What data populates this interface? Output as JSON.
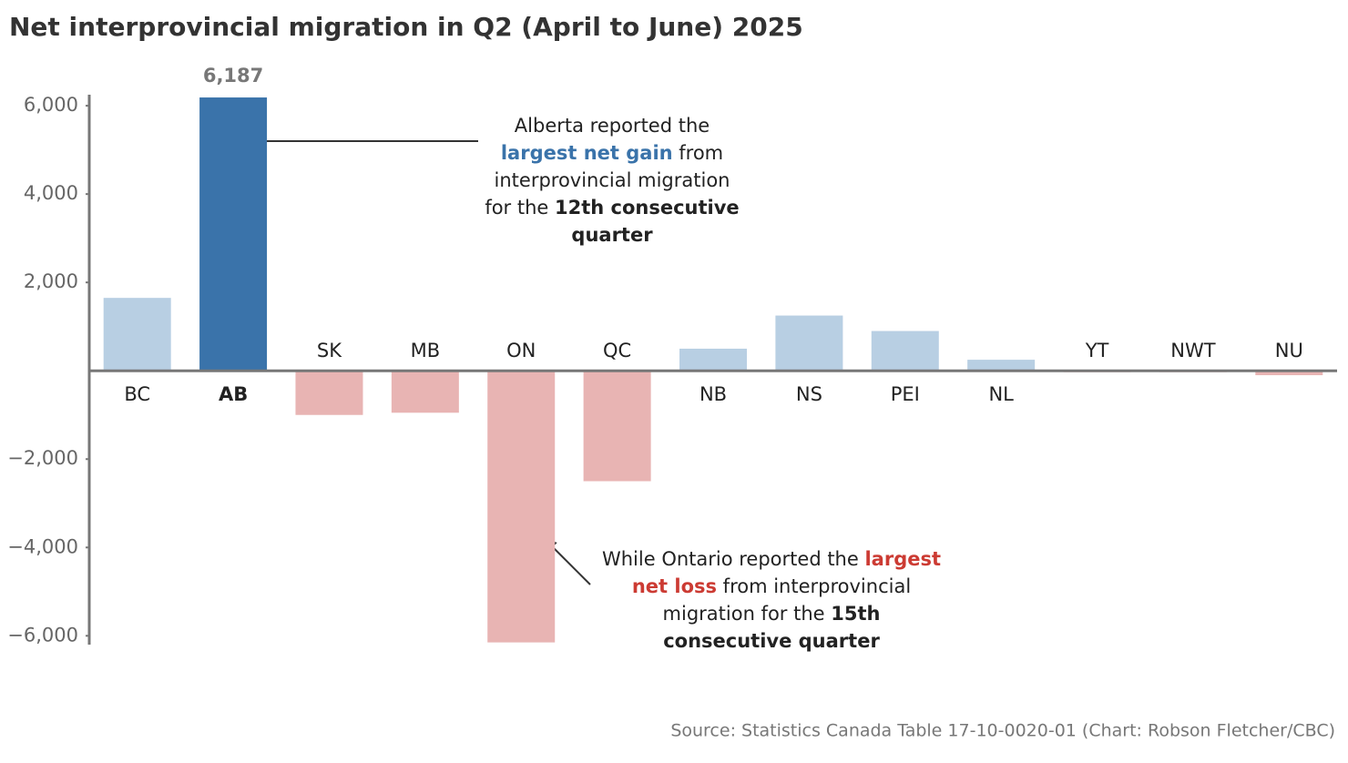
{
  "chart_data": {
    "type": "bar",
    "title": "Net interprovincial migration in Q2 (April to June) 2025",
    "categories": [
      "BC",
      "AB",
      "SK",
      "MB",
      "ON",
      "QC",
      "NB",
      "NS",
      "PEI",
      "NL",
      "YT",
      "NWT",
      "NU"
    ],
    "values": [
      1650,
      6187,
      -1000,
      -950,
      -6150,
      -2500,
      500,
      1250,
      900,
      250,
      -30,
      -20,
      -100
    ],
    "value_labels": [
      null,
      "6,187",
      null,
      null,
      null,
      null,
      null,
      null,
      null,
      null,
      null,
      null,
      null
    ],
    "colors": [
      "#b8cfe3",
      "#3a73aa",
      "#e8b4b3",
      "#e8b4b3",
      "#e8b4b3",
      "#e8b4b3",
      "#b8cfe3",
      "#b8cfe3",
      "#b8cfe3",
      "#b8cfe3",
      "#e8b4b3",
      "#e8b4b3",
      "#e8b4b3"
    ],
    "bold_categories": [
      "AB"
    ],
    "ylim": [
      -6200,
      6250
    ],
    "yticks": [
      {
        "value": 6000,
        "label": "6,000"
      },
      {
        "value": 4000,
        "label": "4,000"
      },
      {
        "value": 2000,
        "label": "2,000"
      },
      {
        "value": -2000,
        "label": "−2,000"
      },
      {
        "value": -4000,
        "label": "−4,000"
      },
      {
        "value": -6000,
        "label": "−6,000"
      }
    ],
    "annotations": [
      {
        "lines": [
          [
            {
              "text": "Alberta reported the"
            }
          ],
          [
            {
              "text": "largest net gain",
              "bold": true,
              "color": "#3a73aa"
            },
            {
              "text": " from"
            }
          ],
          [
            {
              "text": "interprovincial migration"
            }
          ],
          [
            {
              "text": "for the "
            },
            {
              "text": "12th consecutive",
              "bold": true
            }
          ],
          [
            {
              "text": "quarter",
              "bold": true
            }
          ]
        ]
      },
      {
        "lines": [
          [
            {
              "text": "While Ontario reported the "
            },
            {
              "text": "largest",
              "bold": true,
              "color": "#cc3b33"
            }
          ],
          [
            {
              "text": "net loss",
              "bold": true,
              "color": "#cc3b33"
            },
            {
              "text": " from interprovincial"
            }
          ],
          [
            {
              "text": "migration for the "
            },
            {
              "text": "15th",
              "bold": true
            }
          ],
          [
            {
              "text": "consecutive quarter",
              "bold": true
            }
          ]
        ]
      }
    ],
    "source": "Source: Statistics Canada Table 17-10-0020-01 (Chart: Robson Fletcher/CBC)"
  }
}
